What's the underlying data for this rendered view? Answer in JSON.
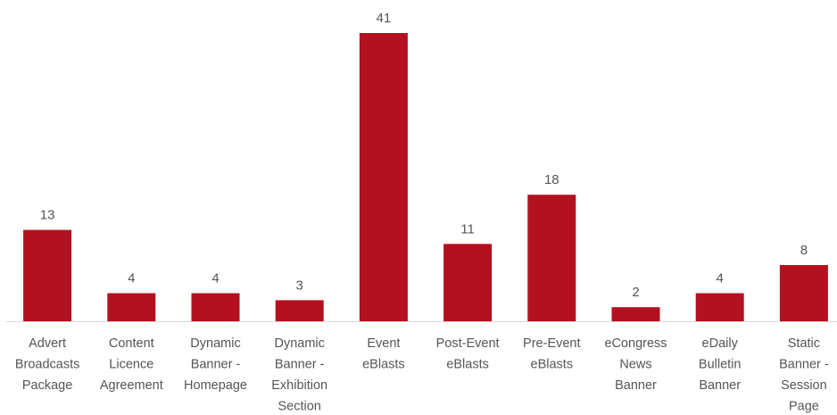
{
  "chart_data": {
    "type": "bar",
    "categories": [
      "Advert Broadcasts Package",
      "Content Licence Agreement",
      "Dynamic Banner - Homepage",
      "Dynamic Banner - Exhibition Section",
      "Event eBlasts",
      "Post-Event eBlasts",
      "Pre-Event eBlasts",
      "eCongress News Banner",
      "eDaily Bulletin Banner",
      "Static Banner - Session Page"
    ],
    "category_lines": [
      [
        "Advert",
        "Broadcasts",
        "Package"
      ],
      [
        "Content",
        "Licence",
        "Agreement"
      ],
      [
        "Dynamic",
        "Banner -",
        "Homepage"
      ],
      [
        "Dynamic",
        "Banner -",
        "Exhibition",
        "Section"
      ],
      [
        "Event",
        "eBlasts"
      ],
      [
        "Post-Event",
        "eBlasts"
      ],
      [
        "Pre-Event",
        "eBlasts"
      ],
      [
        "eCongress",
        "News",
        "Banner"
      ],
      [
        "eDaily",
        "Bulletin",
        "Banner"
      ],
      [
        "Static",
        "Banner -",
        "Session",
        "Page"
      ]
    ],
    "values": [
      13,
      4,
      4,
      3,
      41,
      11,
      18,
      2,
      4,
      8
    ],
    "data_labels": [
      "13",
      "4",
      "4",
      "3",
      "41",
      "11",
      "18",
      "2",
      "4",
      "8"
    ],
    "title": "",
    "xlabel": "",
    "ylabel": "",
    "ylim": [
      0,
      41
    ],
    "grid": false,
    "legend": "none",
    "bar_color": "#b3111f"
  }
}
